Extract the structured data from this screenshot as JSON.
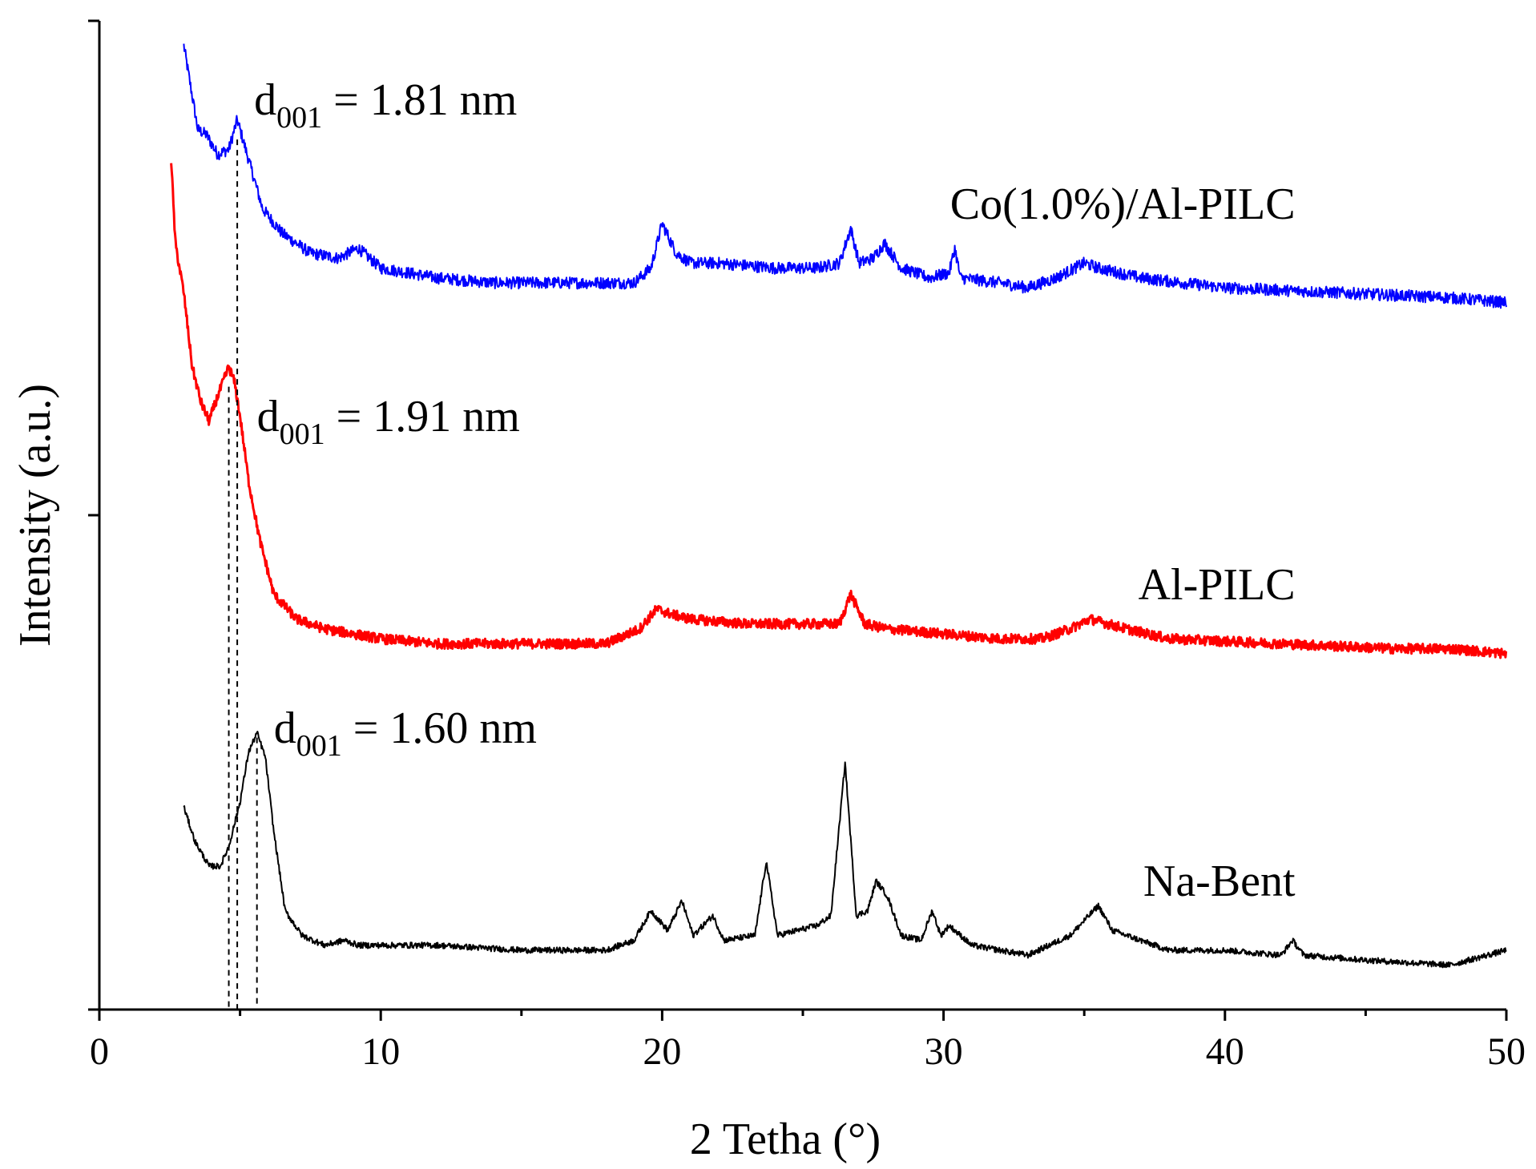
{
  "chart_data": {
    "type": "line",
    "title": "",
    "xlabel": "2 Tetha (°)",
    "ylabel": "Intensity (a.u.)",
    "xlim": [
      0,
      50
    ],
    "ylim": [
      0,
      2
    ],
    "y_ticks_unlabeled": [
      0,
      1,
      2
    ],
    "x_ticks": [
      0,
      10,
      20,
      30,
      40,
      50
    ],
    "x_tick_labels": [
      "0",
      "10",
      "20",
      "30",
      "40",
      "50"
    ],
    "grid": false,
    "series": [
      {
        "name": "Co(1.0%)/Al-PILC",
        "color": "#0000ff",
        "noise": 0.012,
        "points": [
          [
            3.0,
            1.95
          ],
          [
            3.5,
            1.78
          ],
          [
            3.8,
            1.77
          ],
          [
            4.2,
            1.73
          ],
          [
            4.6,
            1.74
          ],
          [
            4.9,
            1.8
          ],
          [
            5.3,
            1.72
          ],
          [
            5.8,
            1.62
          ],
          [
            6.5,
            1.57
          ],
          [
            7.5,
            1.53
          ],
          [
            8.5,
            1.52
          ],
          [
            9.2,
            1.54
          ],
          [
            10,
            1.5
          ],
          [
            11,
            1.49
          ],
          [
            12,
            1.48
          ],
          [
            14,
            1.47
          ],
          [
            16,
            1.47
          ],
          [
            18,
            1.47
          ],
          [
            19,
            1.47
          ],
          [
            19.6,
            1.5
          ],
          [
            20.0,
            1.59
          ],
          [
            20.5,
            1.53
          ],
          [
            21,
            1.51
          ],
          [
            22,
            1.51
          ],
          [
            24,
            1.5
          ],
          [
            25.5,
            1.5
          ],
          [
            26.3,
            1.51
          ],
          [
            26.7,
            1.58
          ],
          [
            27.0,
            1.51
          ],
          [
            27.5,
            1.52
          ],
          [
            27.9,
            1.55
          ],
          [
            28.5,
            1.5
          ],
          [
            29.5,
            1.48
          ],
          [
            30.2,
            1.49
          ],
          [
            30.4,
            1.54
          ],
          [
            30.6,
            1.48
          ],
          [
            32,
            1.47
          ],
          [
            33,
            1.46
          ],
          [
            34,
            1.48
          ],
          [
            35,
            1.51
          ],
          [
            35.5,
            1.5
          ],
          [
            37,
            1.48
          ],
          [
            40,
            1.46
          ],
          [
            44,
            1.45
          ],
          [
            48,
            1.44
          ],
          [
            50,
            1.43
          ]
        ]
      },
      {
        "name": "Al-PILC",
        "color": "#ff0000",
        "noise": 0.01,
        "points": [
          [
            2.55,
            1.72
          ],
          [
            2.7,
            1.55
          ],
          [
            3.0,
            1.45
          ],
          [
            3.3,
            1.3
          ],
          [
            3.6,
            1.23
          ],
          [
            3.9,
            1.19
          ],
          [
            4.2,
            1.24
          ],
          [
            4.6,
            1.3
          ],
          [
            4.8,
            1.27
          ],
          [
            5.0,
            1.2
          ],
          [
            5.3,
            1.07
          ],
          [
            5.7,
            0.95
          ],
          [
            6.2,
            0.84
          ],
          [
            7.0,
            0.79
          ],
          [
            8,
            0.77
          ],
          [
            10,
            0.75
          ],
          [
            12,
            0.74
          ],
          [
            14,
            0.74
          ],
          [
            16,
            0.74
          ],
          [
            18,
            0.74
          ],
          [
            19.2,
            0.77
          ],
          [
            19.8,
            0.81
          ],
          [
            20.3,
            0.8
          ],
          [
            21,
            0.79
          ],
          [
            23,
            0.78
          ],
          [
            25,
            0.78
          ],
          [
            26.3,
            0.78
          ],
          [
            26.7,
            0.84
          ],
          [
            27.2,
            0.78
          ],
          [
            28,
            0.77
          ],
          [
            30,
            0.76
          ],
          [
            32,
            0.75
          ],
          [
            33.5,
            0.75
          ],
          [
            34.5,
            0.77
          ],
          [
            35.2,
            0.79
          ],
          [
            36.5,
            0.77
          ],
          [
            38,
            0.75
          ],
          [
            42,
            0.74
          ],
          [
            46,
            0.73
          ],
          [
            48,
            0.73
          ],
          [
            50,
            0.72
          ]
        ]
      },
      {
        "name": "Na-Bent",
        "color": "#000000",
        "noise": 0.006,
        "points": [
          [
            3.0,
            0.41
          ],
          [
            3.4,
            0.34
          ],
          [
            3.9,
            0.29
          ],
          [
            4.3,
            0.29
          ],
          [
            4.6,
            0.33
          ],
          [
            5.0,
            0.42
          ],
          [
            5.3,
            0.52
          ],
          [
            5.6,
            0.56
          ],
          [
            5.9,
            0.51
          ],
          [
            6.2,
            0.36
          ],
          [
            6.6,
            0.2
          ],
          [
            7.2,
            0.15
          ],
          [
            8,
            0.13
          ],
          [
            8.7,
            0.14
          ],
          [
            9.2,
            0.13
          ],
          [
            12,
            0.13
          ],
          [
            15,
            0.12
          ],
          [
            18,
            0.12
          ],
          [
            19,
            0.14
          ],
          [
            19.6,
            0.2
          ],
          [
            20.2,
            0.16
          ],
          [
            20.7,
            0.22
          ],
          [
            21.1,
            0.15
          ],
          [
            21.8,
            0.19
          ],
          [
            22.2,
            0.14
          ],
          [
            23.3,
            0.15
          ],
          [
            23.7,
            0.3
          ],
          [
            24.1,
            0.15
          ],
          [
            25.5,
            0.17
          ],
          [
            26.0,
            0.19
          ],
          [
            26.5,
            0.5
          ],
          [
            26.9,
            0.19
          ],
          [
            27.3,
            0.2
          ],
          [
            27.6,
            0.26
          ],
          [
            28.0,
            0.23
          ],
          [
            28.5,
            0.15
          ],
          [
            29.2,
            0.14
          ],
          [
            29.6,
            0.2
          ],
          [
            29.9,
            0.15
          ],
          [
            30.2,
            0.17
          ],
          [
            31,
            0.13
          ],
          [
            33,
            0.11
          ],
          [
            34.5,
            0.15
          ],
          [
            35.5,
            0.21
          ],
          [
            36.0,
            0.16
          ],
          [
            36.5,
            0.15
          ],
          [
            38,
            0.12
          ],
          [
            40,
            0.12
          ],
          [
            42,
            0.11
          ],
          [
            42.4,
            0.14
          ],
          [
            42.8,
            0.11
          ],
          [
            45,
            0.1
          ],
          [
            48,
            0.09
          ],
          [
            50,
            0.12
          ]
        ]
      }
    ],
    "series_labels": [
      {
        "text": "Co(1.0%)/Al-PILC",
        "x": 42.5,
        "y": 1.6
      },
      {
        "text": "Al-PILC",
        "x": 42.5,
        "y": 0.83
      },
      {
        "text": "Na-Bent",
        "x": 42.5,
        "y": 0.23
      }
    ],
    "annotations": [
      {
        "main": "d",
        "sub": "001",
        "value": " = 1.81 nm",
        "x": 4.9,
        "y_line_top": 1.76,
        "text_x": 5.5,
        "text_y": 1.81
      },
      {
        "main": "d",
        "sub": "001",
        "value": " = 1.91 nm",
        "x": 4.6,
        "y_line_top": 1.26,
        "text_x": 5.6,
        "text_y": 1.17
      },
      {
        "main": "d",
        "sub": "001",
        "value": " = 1.60 nm",
        "x": 5.6,
        "y_line_top": 0.55,
        "text_x": 6.2,
        "text_y": 0.54
      }
    ]
  }
}
